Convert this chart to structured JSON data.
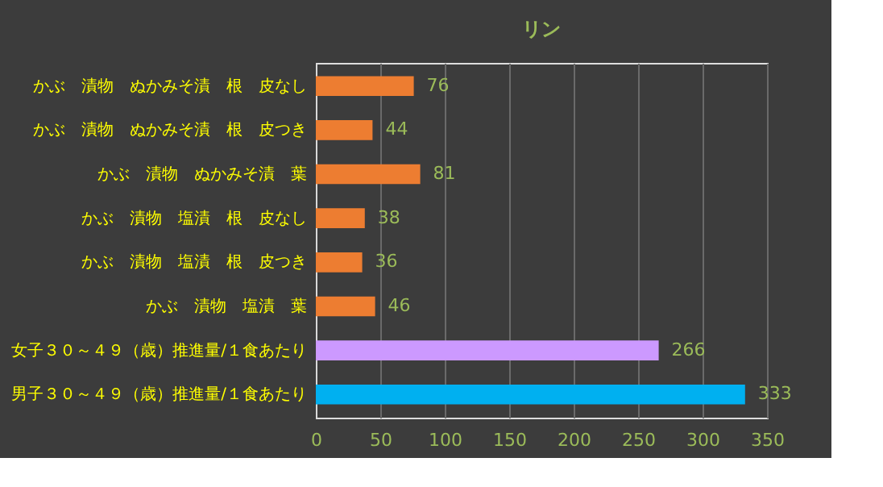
{
  "chart_data": {
    "type": "bar",
    "orientation": "horizontal",
    "title": "リン",
    "categories": [
      "かぶ　漬物　ぬかみそ漬　根　皮なし",
      "かぶ　漬物　ぬかみそ漬　根　皮つき",
      "かぶ　漬物　ぬかみそ漬　葉",
      "かぶ　漬物　塩漬　根　皮なし",
      "かぶ　漬物　塩漬　根　皮つき",
      "かぶ　漬物　塩漬　葉",
      "女子３０～４９（歳）推進量/１食あたり",
      "男子３０～４９（歳）推進量/１食あたり"
    ],
    "values": [
      76,
      44,
      81,
      38,
      36,
      46,
      266,
      333
    ],
    "colors": [
      "#ed7d31",
      "#ed7d31",
      "#ed7d31",
      "#ed7d31",
      "#ed7d31",
      "#ed7d31",
      "#cc99ff",
      "#00b0f0"
    ],
    "xlim": [
      0,
      350
    ],
    "xticks": [
      0,
      50,
      100,
      150,
      200,
      250,
      300,
      350
    ],
    "grid": "x",
    "data_labels": true
  }
}
